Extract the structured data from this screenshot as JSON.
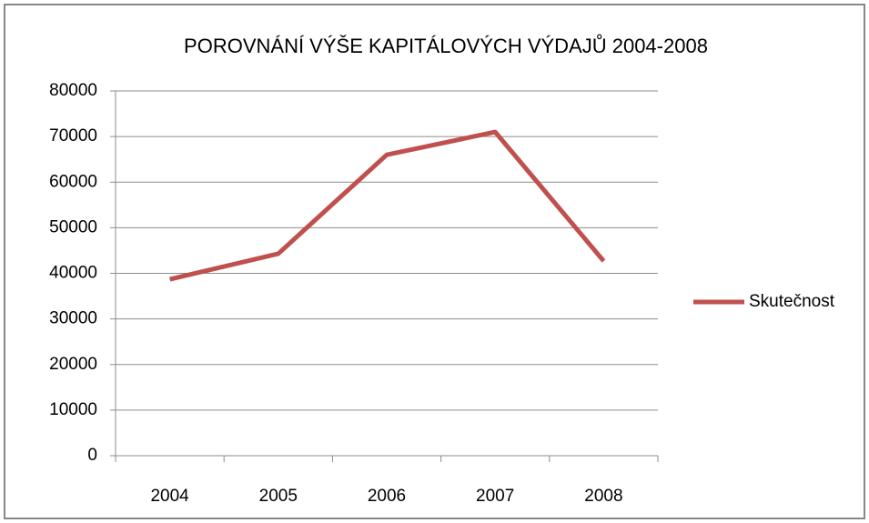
{
  "chart_data": {
    "type": "line",
    "title": "POROVNÁNÍ VÝŠE KAPITÁLOVÝCH VÝDAJŮ 2004-2008",
    "categories": [
      "2004",
      "2005",
      "2006",
      "2007",
      "2008"
    ],
    "series": [
      {
        "name": "Skutečnost",
        "color": "#c0504d",
        "values": [
          38700,
          44300,
          66000,
          71000,
          42700
        ]
      }
    ],
    "ylim": [
      0,
      80000
    ],
    "yticks": [
      0,
      10000,
      20000,
      30000,
      40000,
      50000,
      60000,
      70000,
      80000
    ],
    "grid": true,
    "legend": "right"
  }
}
